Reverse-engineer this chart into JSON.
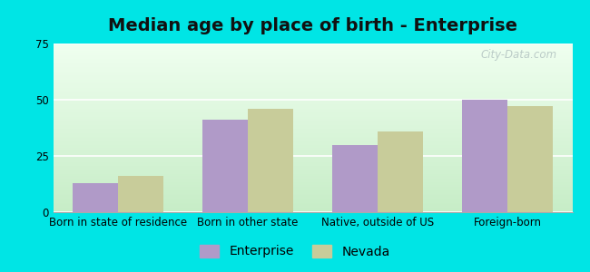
{
  "title": "Median age by place of birth - Enterprise",
  "categories": [
    "Born in state of residence",
    "Born in other state",
    "Native, outside of US",
    "Foreign-born"
  ],
  "enterprise_values": [
    13,
    41,
    30,
    50
  ],
  "nevada_values": [
    16,
    46,
    36,
    47
  ],
  "enterprise_color": "#b09ac8",
  "nevada_color": "#c8cc9a",
  "background_color": "#00e5e5",
  "ylim": [
    0,
    75
  ],
  "yticks": [
    0,
    25,
    50,
    75
  ],
  "legend_labels": [
    "Enterprise",
    "Nevada"
  ],
  "title_fontsize": 14,
  "axis_fontsize": 8.5,
  "legend_fontsize": 10,
  "bar_width": 0.35,
  "watermark": "City-Data.com"
}
